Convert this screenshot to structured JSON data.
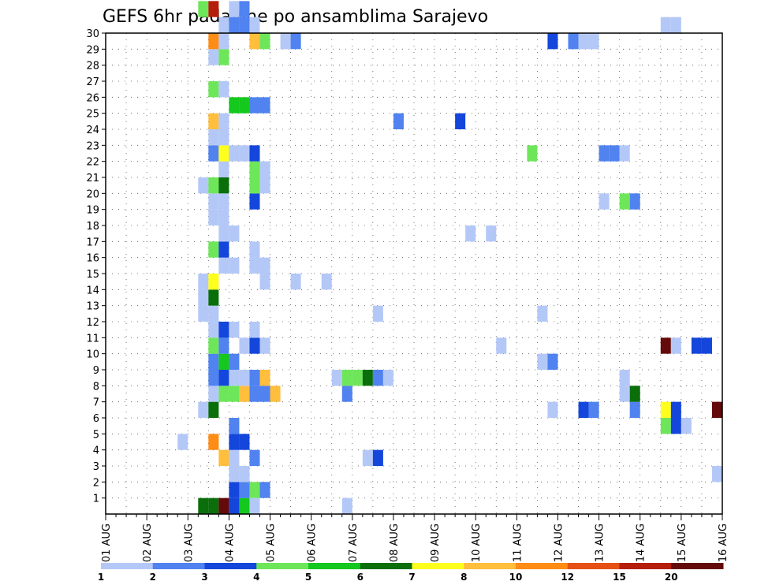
{
  "chart_data": {
    "type": "heatmap",
    "title": "GEFS 6hr padavine po ansamblima Sarajevo",
    "xlabel": "",
    "ylabel": "",
    "x_tick_labels": [
      "01 AUG",
      "02 AUG",
      "03 AUG",
      "04 AUG",
      "05 AUG",
      "06 AUG",
      "07 AUG",
      "08 AUG",
      "09 AUG",
      "10 AUG",
      "11 AUG",
      "12 AUG",
      "13 AUG",
      "14 AUG",
      "15 AUG",
      "16 AUG"
    ],
    "y_tick_labels": [
      "1",
      "2",
      "3",
      "4",
      "5",
      "6",
      "7",
      "8",
      "9",
      "10",
      "11",
      "12",
      "13",
      "14",
      "15",
      "16",
      "17",
      "18",
      "19",
      "20",
      "21",
      "22",
      "23",
      "24",
      "25",
      "26",
      "27",
      "28",
      "29",
      "30"
    ],
    "x_range_days": [
      1,
      16
    ],
    "y_range_members": [
      0,
      30
    ],
    "time_step_hours": 6,
    "grid": "dotted",
    "legend": {
      "position": "bottom",
      "levels": [
        "1",
        "2",
        "3",
        "4",
        "5",
        "6",
        "7",
        "8",
        "10",
        "12",
        "15",
        "20"
      ],
      "colors": [
        "#b4c8f8",
        "#5082f0",
        "#1446dc",
        "#6ee65a",
        "#14c81e",
        "#0a6e0a",
        "#ffff1e",
        "#ffbe3c",
        "#ff8c14",
        "#e65014",
        "#b41e0a",
        "#640a0a"
      ]
    },
    "cells": [
      {
        "m": 0,
        "d": 3.25,
        "c": 6
      },
      {
        "m": 0,
        "d": 3.5,
        "c": 6
      },
      {
        "m": 0,
        "d": 3.75,
        "c": 12
      },
      {
        "m": 0,
        "d": 4.0,
        "c": 3
      },
      {
        "m": 0,
        "d": 4.25,
        "c": 5
      },
      {
        "m": 0,
        "d": 4.5,
        "c": 1
      },
      {
        "m": 0,
        "d": 6.75,
        "c": 1
      },
      {
        "m": 1,
        "d": 4.0,
        "c": 3
      },
      {
        "m": 1,
        "d": 4.25,
        "c": 2
      },
      {
        "m": 1,
        "d": 4.5,
        "c": 4
      },
      {
        "m": 1,
        "d": 4.75,
        "c": 2
      },
      {
        "m": 2,
        "d": 4.0,
        "c": 1
      },
      {
        "m": 2,
        "d": 4.25,
        "c": 1
      },
      {
        "m": 2,
        "d": 15.75,
        "c": 1
      },
      {
        "m": 3,
        "d": 3.75,
        "c": 8
      },
      {
        "m": 3,
        "d": 4.0,
        "c": 1
      },
      {
        "m": 3,
        "d": 4.5,
        "c": 2
      },
      {
        "m": 3,
        "d": 7.25,
        "c": 1
      },
      {
        "m": 3,
        "d": 7.5,
        "c": 3
      },
      {
        "m": 4,
        "d": 2.75,
        "c": 1
      },
      {
        "m": 4,
        "d": 3.5,
        "c": 9
      },
      {
        "m": 4,
        "d": 4.0,
        "c": 3
      },
      {
        "m": 4,
        "d": 4.25,
        "c": 3
      },
      {
        "m": 5,
        "d": 4.0,
        "c": 2
      },
      {
        "m": 5,
        "d": 14.5,
        "c": 4
      },
      {
        "m": 5,
        "d": 14.75,
        "c": 3
      },
      {
        "m": 5,
        "d": 15.0,
        "c": 1
      },
      {
        "m": 6,
        "d": 3.25,
        "c": 1
      },
      {
        "m": 6,
        "d": 3.5,
        "c": 6
      },
      {
        "m": 6,
        "d": 11.75,
        "c": 1
      },
      {
        "m": 6,
        "d": 12.5,
        "c": 3
      },
      {
        "m": 6,
        "d": 12.75,
        "c": 2
      },
      {
        "m": 6,
        "d": 13.75,
        "c": 2
      },
      {
        "m": 6,
        "d": 14.5,
        "c": 7
      },
      {
        "m": 6,
        "d": 14.75,
        "c": 3
      },
      {
        "m": 6,
        "d": 15.75,
        "c": 12
      },
      {
        "m": 7,
        "d": 3.5,
        "c": 1
      },
      {
        "m": 7,
        "d": 3.75,
        "c": 4
      },
      {
        "m": 7,
        "d": 4.0,
        "c": 4
      },
      {
        "m": 7,
        "d": 4.25,
        "c": 8
      },
      {
        "m": 7,
        "d": 4.5,
        "c": 2
      },
      {
        "m": 7,
        "d": 4.75,
        "c": 2
      },
      {
        "m": 7,
        "d": 5.0,
        "c": 8
      },
      {
        "m": 7,
        "d": 6.75,
        "c": 2
      },
      {
        "m": 7,
        "d": 13.5,
        "c": 1
      },
      {
        "m": 7,
        "d": 13.75,
        "c": 6
      },
      {
        "m": 7,
        "d": 16.0,
        "c": 4
      },
      {
        "m": 8,
        "d": 3.5,
        "c": 2
      },
      {
        "m": 8,
        "d": 3.75,
        "c": 3
      },
      {
        "m": 8,
        "d": 4.0,
        "c": 1
      },
      {
        "m": 8,
        "d": 4.25,
        "c": 1
      },
      {
        "m": 8,
        "d": 4.5,
        "c": 2
      },
      {
        "m": 8,
        "d": 4.75,
        "c": 8
      },
      {
        "m": 8,
        "d": 6.5,
        "c": 1
      },
      {
        "m": 8,
        "d": 6.75,
        "c": 4
      },
      {
        "m": 8,
        "d": 7.0,
        "c": 4
      },
      {
        "m": 8,
        "d": 7.25,
        "c": 6
      },
      {
        "m": 8,
        "d": 7.5,
        "c": 2
      },
      {
        "m": 8,
        "d": 7.75,
        "c": 1
      },
      {
        "m": 8,
        "d": 13.5,
        "c": 1
      },
      {
        "m": 9,
        "d": 3.5,
        "c": 2
      },
      {
        "m": 9,
        "d": 3.75,
        "c": 5
      },
      {
        "m": 9,
        "d": 4.0,
        "c": 2
      },
      {
        "m": 9,
        "d": 11.5,
        "c": 1
      },
      {
        "m": 9,
        "d": 11.75,
        "c": 2
      },
      {
        "m": 10,
        "d": 3.5,
        "c": 4
      },
      {
        "m": 10,
        "d": 3.75,
        "c": 2
      },
      {
        "m": 10,
        "d": 4.25,
        "c": 1
      },
      {
        "m": 10,
        "d": 4.5,
        "c": 3
      },
      {
        "m": 10,
        "d": 4.75,
        "c": 1
      },
      {
        "m": 10,
        "d": 10.5,
        "c": 1
      },
      {
        "m": 10,
        "d": 14.5,
        "c": 12
      },
      {
        "m": 10,
        "d": 14.75,
        "c": 1
      },
      {
        "m": 10,
        "d": 15.25,
        "c": 3
      },
      {
        "m": 10,
        "d": 15.5,
        "c": 3
      },
      {
        "m": 11,
        "d": 3.5,
        "c": 1
      },
      {
        "m": 11,
        "d": 3.75,
        "c": 3
      },
      {
        "m": 11,
        "d": 4.0,
        "c": 1
      },
      {
        "m": 11,
        "d": 4.5,
        "c": 1
      },
      {
        "m": 12,
        "d": 3.25,
        "c": 1
      },
      {
        "m": 12,
        "d": 3.5,
        "c": 1
      },
      {
        "m": 12,
        "d": 7.5,
        "c": 1
      },
      {
        "m": 12,
        "d": 11.5,
        "c": 1
      },
      {
        "m": 13,
        "d": 3.25,
        "c": 1
      },
      {
        "m": 13,
        "d": 3.5,
        "c": 6
      },
      {
        "m": 14,
        "d": 3.25,
        "c": 1
      },
      {
        "m": 14,
        "d": 3.5,
        "c": 7
      },
      {
        "m": 14,
        "d": 4.75,
        "c": 1
      },
      {
        "m": 14,
        "d": 5.5,
        "c": 1
      },
      {
        "m": 14,
        "d": 6.25,
        "c": 1
      },
      {
        "m": 15,
        "d": 3.75,
        "c": 1
      },
      {
        "m": 15,
        "d": 4.0,
        "c": 1
      },
      {
        "m": 15,
        "d": 4.5,
        "c": 1
      },
      {
        "m": 15,
        "d": 4.75,
        "c": 1
      },
      {
        "m": 16,
        "d": 3.5,
        "c": 4
      },
      {
        "m": 16,
        "d": 3.75,
        "c": 3
      },
      {
        "m": 16,
        "d": 4.5,
        "c": 1
      },
      {
        "m": 17,
        "d": 3.75,
        "c": 1
      },
      {
        "m": 17,
        "d": 4.0,
        "c": 1
      },
      {
        "m": 17,
        "d": 9.75,
        "c": 1
      },
      {
        "m": 17,
        "d": 10.25,
        "c": 1
      },
      {
        "m": 18,
        "d": 3.5,
        "c": 1
      },
      {
        "m": 18,
        "d": 3.75,
        "c": 1
      },
      {
        "m": 19,
        "d": 3.5,
        "c": 1
      },
      {
        "m": 19,
        "d": 3.75,
        "c": 1
      },
      {
        "m": 19,
        "d": 4.5,
        "c": 3
      },
      {
        "m": 19,
        "d": 13.0,
        "c": 1
      },
      {
        "m": 19,
        "d": 13.5,
        "c": 4
      },
      {
        "m": 19,
        "d": 13.75,
        "c": 2
      },
      {
        "m": 20,
        "d": 3.25,
        "c": 1
      },
      {
        "m": 20,
        "d": 3.5,
        "c": 4
      },
      {
        "m": 20,
        "d": 3.75,
        "c": 6
      },
      {
        "m": 20,
        "d": 4.5,
        "c": 4
      },
      {
        "m": 20,
        "d": 4.75,
        "c": 1
      },
      {
        "m": 21,
        "d": 3.75,
        "c": 1
      },
      {
        "m": 21,
        "d": 4.5,
        "c": 4
      },
      {
        "m": 21,
        "d": 4.75,
        "c": 1
      },
      {
        "m": 22,
        "d": 3.5,
        "c": 2
      },
      {
        "m": 22,
        "d": 3.75,
        "c": 7
      },
      {
        "m": 22,
        "d": 4.0,
        "c": 1
      },
      {
        "m": 22,
        "d": 4.25,
        "c": 1
      },
      {
        "m": 22,
        "d": 4.5,
        "c": 3
      },
      {
        "m": 22,
        "d": 11.25,
        "c": 4
      },
      {
        "m": 22,
        "d": 13.0,
        "c": 2
      },
      {
        "m": 22,
        "d": 13.25,
        "c": 2
      },
      {
        "m": 22,
        "d": 13.5,
        "c": 1
      },
      {
        "m": 23,
        "d": 3.5,
        "c": 1
      },
      {
        "m": 23,
        "d": 3.75,
        "c": 1
      },
      {
        "m": 24,
        "d": 3.5,
        "c": 8
      },
      {
        "m": 24,
        "d": 3.75,
        "c": 1
      },
      {
        "m": 24,
        "d": 8.0,
        "c": 2
      },
      {
        "m": 24,
        "d": 9.5,
        "c": 3
      },
      {
        "m": 25,
        "d": 4.0,
        "c": 5
      },
      {
        "m": 25,
        "d": 4.25,
        "c": 5
      },
      {
        "m": 25,
        "d": 4.5,
        "c": 2
      },
      {
        "m": 25,
        "d": 4.75,
        "c": 2
      },
      {
        "m": 26,
        "d": 3.5,
        "c": 4
      },
      {
        "m": 26,
        "d": 3.75,
        "c": 1
      },
      {
        "m": 28,
        "d": 3.5,
        "c": 1
      },
      {
        "m": 28,
        "d": 3.75,
        "c": 4
      },
      {
        "m": 29,
        "d": 3.5,
        "c": 9
      },
      {
        "m": 29,
        "d": 3.75,
        "c": 1
      },
      {
        "m": 29,
        "d": 4.5,
        "c": 8
      },
      {
        "m": 29,
        "d": 4.75,
        "c": 4
      },
      {
        "m": 29,
        "d": 5.25,
        "c": 1
      },
      {
        "m": 29,
        "d": 5.5,
        "c": 2
      },
      {
        "m": 29,
        "d": 11.75,
        "c": 3
      },
      {
        "m": 29,
        "d": 12.25,
        "c": 2
      },
      {
        "m": 29,
        "d": 12.5,
        "c": 1
      },
      {
        "m": 29,
        "d": 12.75,
        "c": 1
      },
      {
        "m": 30,
        "d": 3.75,
        "c": 1
      },
      {
        "m": 30,
        "d": 4.0,
        "c": 2
      },
      {
        "m": 30,
        "d": 4.25,
        "c": 2
      },
      {
        "m": 30,
        "d": 4.5,
        "c": 1
      },
      {
        "m": 30,
        "d": 14.5,
        "c": 1
      },
      {
        "m": 30,
        "d": 14.75,
        "c": 1
      },
      {
        "m": 31,
        "d": 3.25,
        "c": 4
      },
      {
        "m": 31,
        "d": 3.5,
        "c": 11
      },
      {
        "m": 31,
        "d": 4.0,
        "c": 1
      },
      {
        "m": 31,
        "d": 4.25,
        "c": 2
      }
    ]
  }
}
